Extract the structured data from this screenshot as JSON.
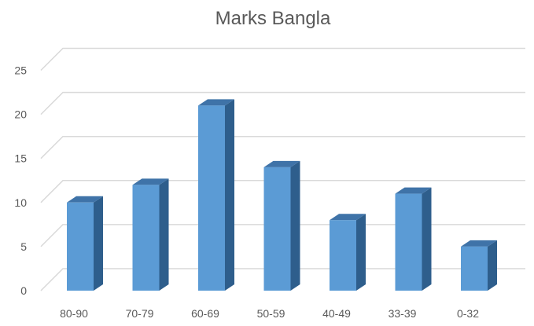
{
  "chart_data": {
    "type": "bar",
    "title": "Marks Bangla",
    "categories": [
      "80-90",
      "70-79",
      "60-69",
      "50-59",
      "40-49",
      "33-39",
      "0-32"
    ],
    "values": [
      10,
      12,
      21,
      14,
      8,
      11,
      5
    ],
    "xlabel": "",
    "ylabel": "",
    "ylim": [
      0,
      25
    ],
    "yticks": [
      "0",
      "5",
      "10",
      "15",
      "20",
      "25"
    ],
    "grid": true,
    "style": "3d-column",
    "colors": {
      "front": "#5B9BD5",
      "side": "#2E5E8C",
      "top": "#3F73A8",
      "grid": "#D9D9D9"
    }
  }
}
